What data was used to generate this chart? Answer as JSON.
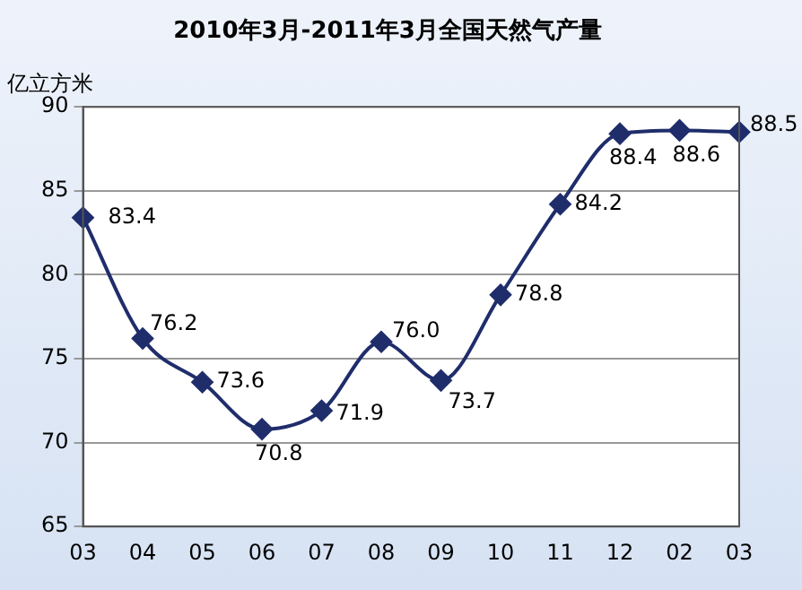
{
  "chart_data": {
    "type": "line",
    "title": "2010年3月-2011年3月全国天然气产量",
    "ylabel": "亿立方米",
    "categories": [
      "03",
      "04",
      "05",
      "06",
      "07",
      "08",
      "09",
      "10",
      "11",
      "12",
      "02",
      "03"
    ],
    "series": [
      {
        "color": "#1f2d6b",
        "values": [
          83.4,
          76.2,
          73.6,
          70.8,
          71.9,
          76.0,
          73.7,
          78.8,
          84.2,
          88.4,
          88.6,
          88.5
        ],
        "value_labels": [
          "83.4",
          "76.2",
          "73.6",
          "70.8",
          "71.9",
          "76.0",
          "73.7",
          "78.8",
          "84.2",
          "88.4",
          "88.6",
          "88.5"
        ]
      }
    ],
    "ylim": [
      65,
      90
    ],
    "yticks": [
      65,
      70,
      75,
      80,
      85,
      90
    ],
    "grid": "y",
    "legend": false,
    "marker": "diamond",
    "line_style": "solid"
  }
}
